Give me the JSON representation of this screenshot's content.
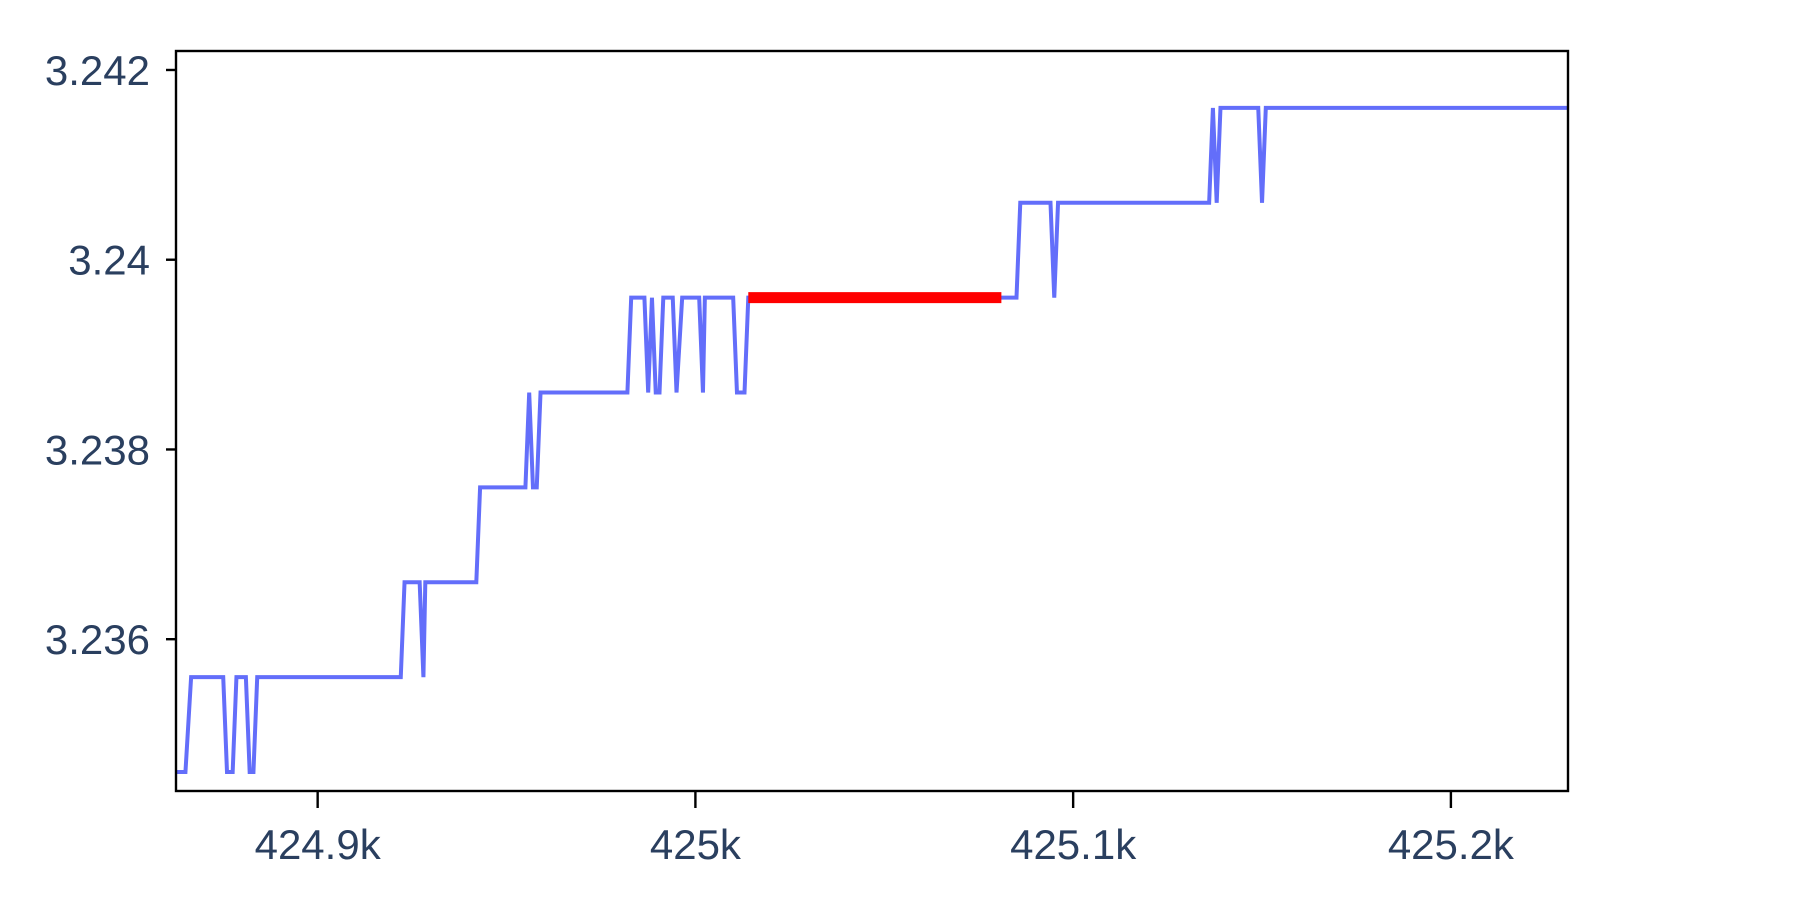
{
  "chart_data": {
    "type": "line",
    "title": "",
    "xlabel": "",
    "ylabel": "",
    "xlim": [
      424862.5,
      425231
    ],
    "ylim": [
      3.2344,
      3.2422
    ],
    "grid": false,
    "x_ticks": [
      {
        "value": 424900,
        "label": "424.9k"
      },
      {
        "value": 425000,
        "label": "425k"
      },
      {
        "value": 425100,
        "label": "425.1k"
      },
      {
        "value": 425200,
        "label": "425.2k"
      }
    ],
    "y_ticks": [
      {
        "value": 3.236,
        "label": "3.236"
      },
      {
        "value": 3.238,
        "label": "3.238"
      },
      {
        "value": 3.24,
        "label": "3.24"
      },
      {
        "value": 3.242,
        "label": "3.242"
      }
    ],
    "series": [
      {
        "color": "#636efa",
        "x": [
          424862.5,
          424865,
          424866.5,
          424875,
          424876,
          424877.5,
          424878.5,
          424881,
          424882,
          424883,
          424884,
          424922,
          424923,
          424927,
          424928,
          424928.5,
          424931,
          424942,
          424943,
          424955,
          424956,
          424957,
          424958,
          424959,
          424960,
          424982,
          424983,
          424986.5,
          424987.5,
          424988.5,
          424989.5,
          424990.5,
          424991.5,
          424994,
          424995,
          424996.5,
          424997.5,
          425001,
          425002,
          425002.5,
          425003.5,
          425010,
          425011,
          425013,
          425014,
          425015,
          425082,
          425085,
          425086,
          425094,
          425095,
          425096,
          425097,
          425136,
          425137,
          425138,
          425139,
          425140,
          425141,
          425149,
          425150,
          425151,
          425231
        ],
        "y": [
          3.2346,
          3.2346,
          3.2356,
          3.2356,
          3.2346,
          3.2346,
          3.2356,
          3.2356,
          3.2346,
          3.2346,
          3.2356,
          3.2356,
          3.2366,
          3.2366,
          3.2356,
          3.2366,
          3.2366,
          3.2366,
          3.2376,
          3.2376,
          3.2386,
          3.2376,
          3.2376,
          3.2386,
          3.2386,
          3.2386,
          3.2396,
          3.2396,
          3.2386,
          3.2396,
          3.2386,
          3.2386,
          3.2396,
          3.2396,
          3.2386,
          3.2396,
          3.2396,
          3.2396,
          3.2386,
          3.2396,
          3.2396,
          3.2396,
          3.2386,
          3.2386,
          3.2396,
          3.2396,
          3.2396,
          3.2396,
          3.2406,
          3.2406,
          3.2396,
          3.2406,
          3.2406,
          3.2406,
          3.2416,
          3.2406,
          3.2416,
          3.2416,
          3.2416,
          3.2416,
          3.2406,
          3.2416,
          3.2416
        ]
      },
      {
        "color": "#ff0000",
        "x": [
          425014,
          425081
        ],
        "y": [
          3.2396,
          3.2396
        ]
      }
    ]
  }
}
